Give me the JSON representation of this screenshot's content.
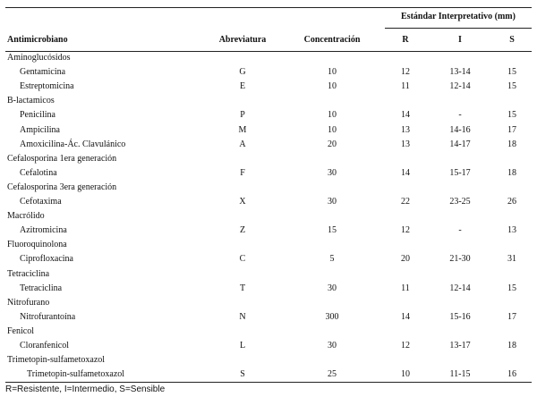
{
  "table": {
    "group_header": "Estándar Interpretativo (mm)",
    "columns": [
      "Antimicrobiano",
      "Abreviatura",
      "Concentración",
      "R",
      "I",
      "S"
    ],
    "rows": [
      {
        "type": "category",
        "name": "Aminoglucósidos"
      },
      {
        "type": "drug",
        "name": "Gentamicina",
        "abbr": "G",
        "conc": "10",
        "r": "12",
        "i": "13-14",
        "s": "15"
      },
      {
        "type": "drug",
        "name": "Estreptomicina",
        "abbr": "E",
        "conc": "10",
        "r": "11",
        "i": "12-14",
        "s": "15"
      },
      {
        "type": "category",
        "name": "B-lactamicos"
      },
      {
        "type": "drug",
        "name": "Penicilina",
        "abbr": "P",
        "conc": "10",
        "r": "14",
        "i": "-",
        "s": "15"
      },
      {
        "type": "drug",
        "name": "Ampicilina",
        "abbr": "M",
        "conc": "10",
        "r": "13",
        "i": "14-16",
        "s": "17"
      },
      {
        "type": "drug",
        "name": "Amoxicilina-Ác. Clavulánico",
        "abbr": "A",
        "conc": "20",
        "r": "13",
        "i": "14-17",
        "s": "18"
      },
      {
        "type": "category",
        "name": "Cefalosporina 1era generación"
      },
      {
        "type": "drug",
        "name": "Cefalotina",
        "abbr": "F",
        "conc": "30",
        "r": "14",
        "i": "15-17",
        "s": "18"
      },
      {
        "type": "category",
        "name": "Cefalosporina 3era generación"
      },
      {
        "type": "drug",
        "name": "Cefotaxima",
        "abbr": "X",
        "conc": "30",
        "r": "22",
        "i": "23-25",
        "s": "26"
      },
      {
        "type": "category",
        "name": "Macrólido"
      },
      {
        "type": "drug",
        "name": "Azitromicina",
        "abbr": "Z",
        "conc": "15",
        "r": "12",
        "i": "-",
        "s": "13"
      },
      {
        "type": "category",
        "name": "Fluoroquinolona"
      },
      {
        "type": "drug",
        "name": "Ciprofloxacina",
        "abbr": "C",
        "conc": "5",
        "r": "20",
        "i": "21-30",
        "s": "31"
      },
      {
        "type": "category",
        "name": "Tetraciclina"
      },
      {
        "type": "drug",
        "name": "Tetraciclina",
        "abbr": "T",
        "conc": "30",
        "r": "11",
        "i": "12-14",
        "s": "15"
      },
      {
        "type": "category",
        "name": "Nitrofurano"
      },
      {
        "type": "drug",
        "name": "Nitrofurantoína",
        "abbr": "N",
        "conc": "300",
        "r": "14",
        "i": "15-16",
        "s": "17"
      },
      {
        "type": "category",
        "name": "Fenicol"
      },
      {
        "type": "drug",
        "name": "Cloranfenicol",
        "abbr": "L",
        "conc": "30",
        "r": "12",
        "i": "13-17",
        "s": "18"
      },
      {
        "type": "category",
        "name": "Trimetopin-sulfametoxazol"
      },
      {
        "type": "drug",
        "name": "Trimetopin-sulfametoxazol",
        "abbr": "S",
        "conc": "25",
        "r": "10",
        "i": "11-15",
        "s": "16"
      }
    ]
  },
  "footnote": "R=Resistente, I=Intermedio, S=Sensible"
}
